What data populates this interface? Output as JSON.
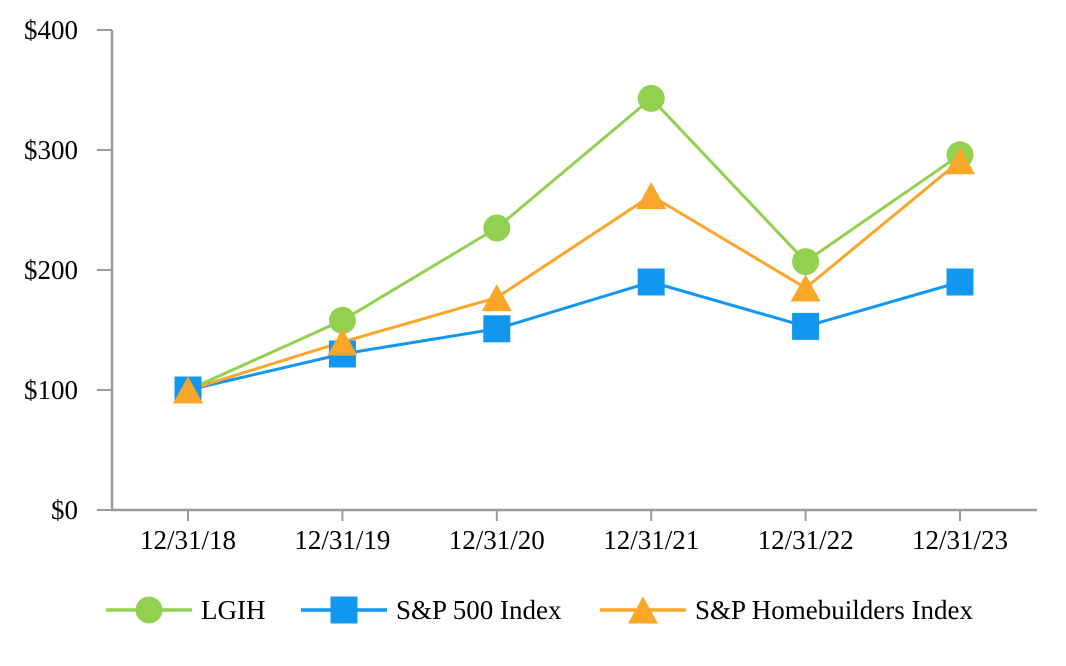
{
  "chart_data": {
    "type": "line",
    "title": "",
    "x_axis": {
      "categories": [
        "12/31/18",
        "12/31/19",
        "12/31/20",
        "12/31/21",
        "12/31/22",
        "12/31/23"
      ]
    },
    "y_axis": {
      "tick_values": [
        0,
        100,
        200,
        300,
        400
      ],
      "tick_labels": [
        "$0",
        "$100",
        "$200",
        "$300",
        "$400"
      ],
      "range": [
        0,
        400
      ]
    },
    "grid": false,
    "legend_position": "bottom",
    "colors": {
      "axis": "#9B9B9B",
      "text": "#000000",
      "lgih_green": "#92D050",
      "sp500_blue": "#1197F0",
      "homebuilders_orange": "#FAA628"
    },
    "series": [
      {
        "name": "LGIH",
        "marker": "circle",
        "color": "#92D050",
        "values": [
          100,
          158,
          235,
          343,
          207,
          296
        ]
      },
      {
        "name": "S&P 500 Index",
        "marker": "square",
        "color": "#1197F0",
        "values": [
          100,
          130,
          151,
          190,
          153,
          190
        ]
      },
      {
        "name": "S&P Homebuilders Index",
        "marker": "triangle",
        "color": "#FAA628",
        "values": [
          100,
          140,
          177,
          262,
          185,
          291
        ]
      }
    ]
  }
}
